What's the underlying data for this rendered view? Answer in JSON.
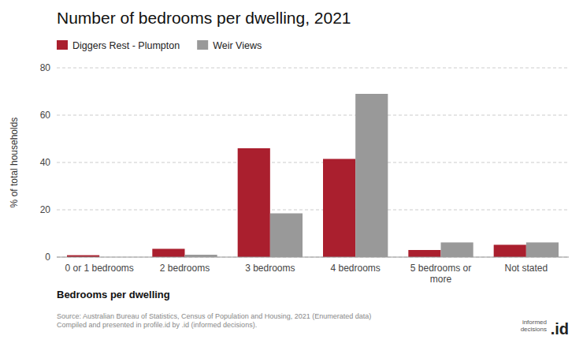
{
  "chart_data": {
    "type": "bar",
    "title": "Number of bedrooms per dwelling, 2021",
    "categories": [
      "0 or 1 bedrooms",
      "2 bedrooms",
      "3 bedrooms",
      "4 bedrooms",
      "5 bedrooms or\nmore",
      "Not stated"
    ],
    "series": [
      {
        "name": "Diggers Rest - Plumpton",
        "color": "#aa1f2e",
        "values": [
          0.8,
          3.5,
          46.0,
          41.5,
          3.0,
          5.2
        ]
      },
      {
        "name": "Weir Views",
        "color": "#999999",
        "values": [
          0.0,
          1.0,
          18.5,
          69.0,
          6.2,
          6.2
        ]
      }
    ],
    "xlabel": "Bedrooms per dwelling",
    "ylabel": "% of total households",
    "ylim": [
      0,
      80
    ],
    "yticks": [
      0,
      20,
      40,
      60,
      80
    ],
    "grid": true,
    "legend": "top",
    "annotations": [
      "Source: Australian Bureau of Statistics, Census of Population and Housing, 2021 (Enumerated data)\nCompiled and presented in profile.id by .id (informed decisions).",
      ".id",
      "informed\ndecisions"
    ]
  }
}
